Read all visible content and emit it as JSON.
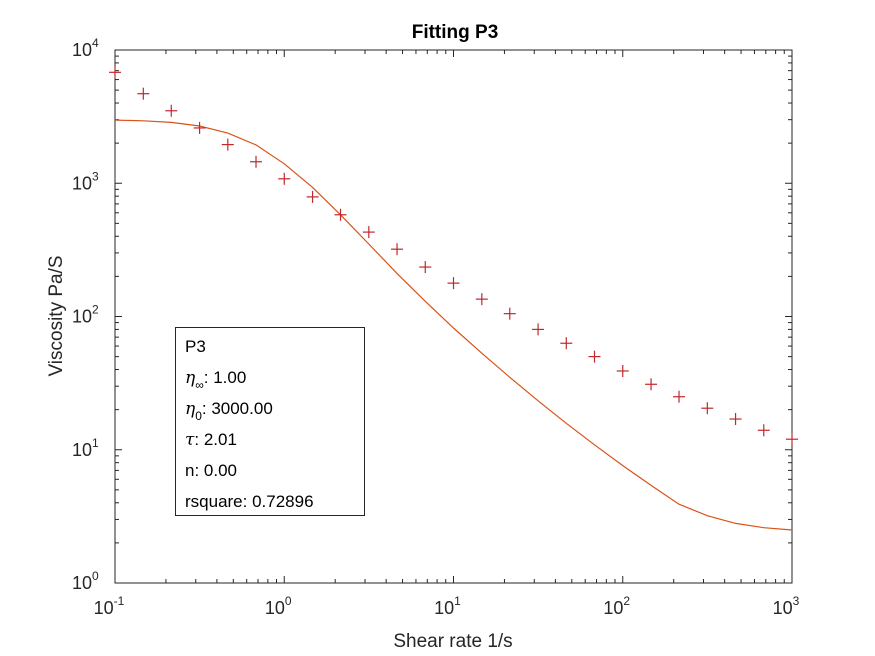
{
  "chart_data": {
    "type": "scatter",
    "title": "Fitting P3",
    "xlabel": "Shear rate 1/s",
    "ylabel": "Viscosity Pa/S",
    "xscale": "log",
    "yscale": "log",
    "xlim": [
      0.1,
      1000
    ],
    "ylim": [
      1,
      10000
    ],
    "x_ticks": [
      {
        "base": "10",
        "exp": "-1"
      },
      {
        "base": "10",
        "exp": "0"
      },
      {
        "base": "10",
        "exp": "1"
      },
      {
        "base": "10",
        "exp": "2"
      },
      {
        "base": "10",
        "exp": "3"
      }
    ],
    "y_ticks": [
      {
        "base": "10",
        "exp": "0"
      },
      {
        "base": "10",
        "exp": "1"
      },
      {
        "base": "10",
        "exp": "2"
      },
      {
        "base": "10",
        "exp": "3"
      },
      {
        "base": "10",
        "exp": "4"
      }
    ],
    "series": [
      {
        "type": "scatter",
        "marker": "+",
        "color": "#c0282c",
        "x": [
          0.1,
          0.147,
          0.215,
          0.316,
          0.464,
          0.681,
          1.0,
          1.47,
          2.15,
          3.16,
          4.64,
          6.81,
          10,
          14.7,
          21.5,
          31.6,
          46.4,
          68.1,
          100,
          147,
          215,
          316,
          464,
          681,
          1000
        ],
        "y": [
          6800,
          4700,
          3500,
          2600,
          1950,
          1450,
          1080,
          790,
          580,
          430,
          320,
          235,
          178,
          135,
          105,
          80,
          63,
          50,
          39,
          31,
          25,
          20.5,
          17,
          14,
          12
        ]
      },
      {
        "type": "line",
        "color": "#d95319",
        "x": [
          0.1,
          0.147,
          0.215,
          0.316,
          0.464,
          0.681,
          1.0,
          1.47,
          2.15,
          3.16,
          4.64,
          6.81,
          10,
          14.7,
          21.5,
          31.6,
          46.4,
          68.1,
          100,
          147,
          215,
          316,
          464,
          681,
          1000
        ],
        "y": [
          2980,
          2940,
          2860,
          2690,
          2380,
          1940,
          1400,
          930,
          580,
          350,
          210,
          130,
          82,
          53,
          35,
          23.3,
          15.8,
          10.9,
          7.6,
          5.4,
          3.9,
          3.2,
          2.8,
          2.6,
          2.5
        ]
      }
    ],
    "grid": false,
    "legend_position": "lower-left"
  },
  "legend": {
    "name": "P3",
    "eta_inf_value": ": 1.00",
    "eta_0_value": ": 3000.00",
    "tau_value": ": 2.01",
    "n_line": "n: 0.00",
    "rsquare_line": "rsquare: 0.72896"
  },
  "colors": {
    "marker": "#c0282c",
    "fit": "#d95319",
    "axis": "#262626"
  }
}
